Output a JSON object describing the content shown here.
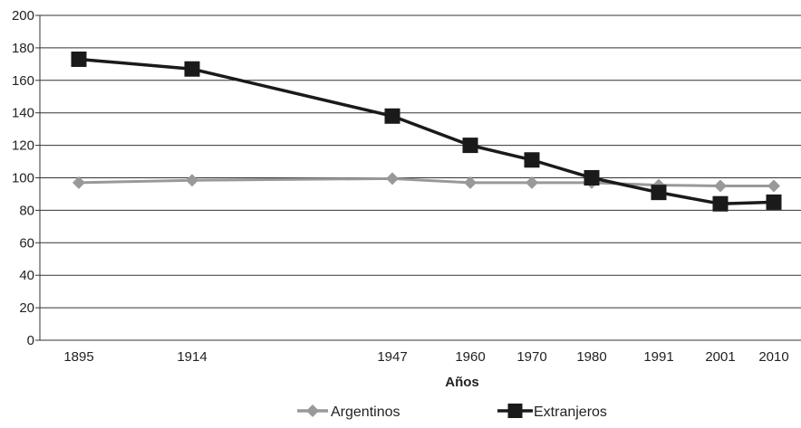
{
  "chart_data": {
    "type": "line",
    "x": [
      "1895",
      "1914",
      "1947",
      "1960",
      "1970",
      "1980",
      "1991",
      "2001",
      "2010"
    ],
    "xlabel": "Años",
    "ylabel": "",
    "ylim": [
      0,
      200
    ],
    "yticks": [
      0,
      20,
      40,
      60,
      80,
      100,
      120,
      140,
      160,
      180,
      200
    ],
    "grid": "horizontal",
    "legend": "bottom",
    "series": [
      {
        "name": "Argentinos",
        "color": "#999999",
        "marker": "diamond",
        "values": [
          97,
          98.5,
          99.5,
          97,
          97,
          97,
          95.5,
          95,
          95
        ]
      },
      {
        "name": "Extranjeros",
        "color": "#1a1a1a",
        "marker": "square",
        "values": [
          173,
          167,
          138,
          120,
          111,
          100,
          91,
          84,
          85
        ]
      }
    ]
  }
}
